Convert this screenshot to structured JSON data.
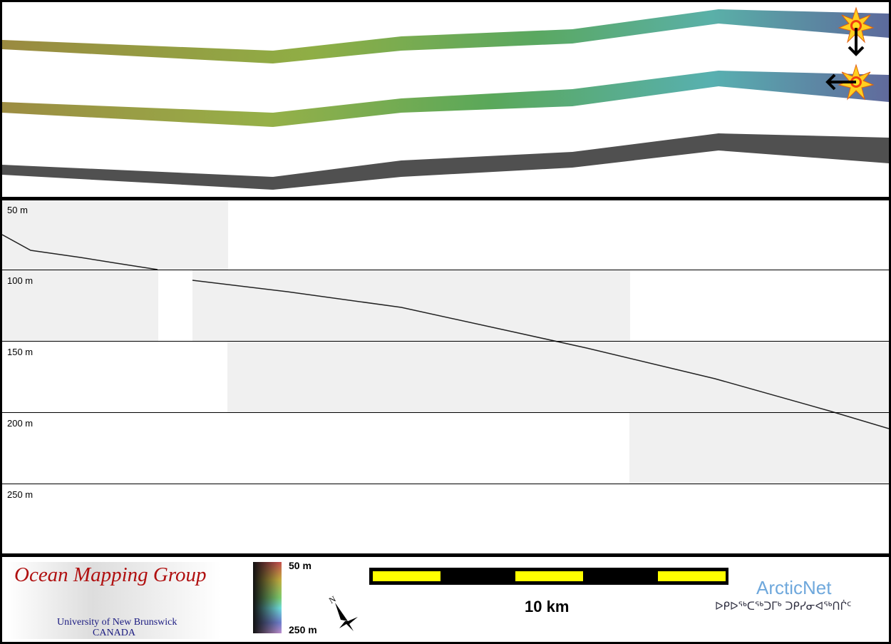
{
  "profile": {
    "depth_labels": [
      "50 m",
      "100 m",
      "150 m",
      "200 m",
      "250 m"
    ]
  },
  "legend": {
    "logo_omg": {
      "title": "Ocean Mapping Group",
      "line1": "University of New Brunswick",
      "line2": "CANADA"
    },
    "colorbar": {
      "top_label": "50 m",
      "bottom_label": "250 m",
      "colors": [
        "#c85050",
        "#c8b040",
        "#80d070",
        "#70e0e0",
        "#7080d0",
        "#c090d0"
      ]
    },
    "north_label": "N",
    "scale_bar": {
      "label": "10 km",
      "colors": [
        "#000000",
        "#ffff00"
      ]
    },
    "logo_arcticnet": {
      "name": "ArcticNet",
      "syllabics": "ᐅᑭᐅᖅᑕᖅᑐᒥᒃ ᑐᑭᓯᓂᐊᖅᑎᒌᑦ"
    }
  },
  "markers": {
    "icon": "sun-icon",
    "arrows": [
      "arrow-down-icon",
      "arrow-left-icon"
    ]
  }
}
